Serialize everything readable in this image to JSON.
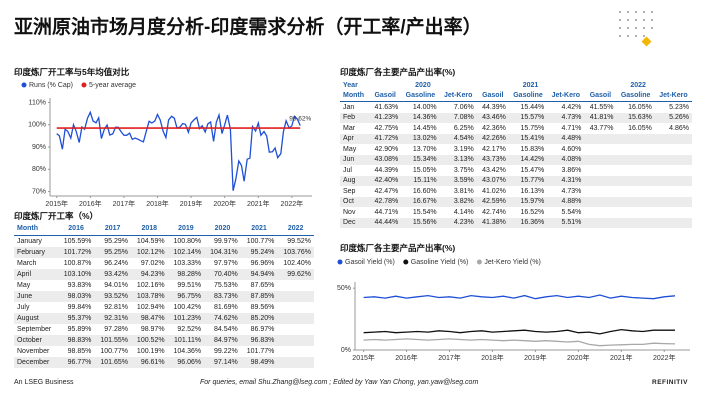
{
  "header": {
    "title": "亚洲原油市场月度分析-印度需求分析（开工率/产出率）"
  },
  "chart_data": [
    {
      "type": "line",
      "title": "印度炼厂开工率与5年均值对比",
      "xlim": [
        2014.8,
        2022.6
      ],
      "ylim": [
        68,
        112
      ],
      "grid": false,
      "xticks": [
        {
          "value": 2015,
          "label": "2015年"
        },
        {
          "value": 2016,
          "label": "2016年"
        },
        {
          "value": 2017,
          "label": "2017年"
        },
        {
          "value": 2018,
          "label": "2018年"
        },
        {
          "value": 2019,
          "label": "2019年"
        },
        {
          "value": 2020,
          "label": "2020年"
        },
        {
          "value": 2021,
          "label": "2021年"
        },
        {
          "value": 2022,
          "label": "2022年"
        }
      ],
      "yticks": [
        {
          "value": 70,
          "label": "70%"
        },
        {
          "value": 80,
          "label": "80%"
        },
        {
          "value": 90,
          "label": "90%"
        },
        {
          "value": 100,
          "label": "100%"
        },
        {
          "value": 110,
          "label": "110%"
        }
      ],
      "annotation": {
        "text": "99.62%",
        "x": 2022.25,
        "y": 99.62
      },
      "series": [
        {
          "name": "Runs (% Cap)",
          "color": "#1f4fd6",
          "x": [
            2015.0,
            2015.08,
            2015.17,
            2015.25,
            2015.33,
            2015.42,
            2015.5,
            2015.58,
            2015.67,
            2015.75,
            2015.83,
            2015.92,
            2016.0,
            2016.08,
            2016.17,
            2016.25,
            2016.33,
            2016.42,
            2016.5,
            2016.58,
            2016.67,
            2016.75,
            2016.83,
            2016.92,
            2017.0,
            2017.08,
            2017.17,
            2017.25,
            2017.33,
            2017.42,
            2017.5,
            2017.58,
            2017.67,
            2017.75,
            2017.83,
            2017.92,
            2018.0,
            2018.08,
            2018.17,
            2018.25,
            2018.33,
            2018.42,
            2018.5,
            2018.58,
            2018.67,
            2018.75,
            2018.83,
            2018.92,
            2019.0,
            2019.08,
            2019.17,
            2019.25,
            2019.33,
            2019.42,
            2019.5,
            2019.58,
            2019.67,
            2019.75,
            2019.83,
            2019.92,
            2020.0,
            2020.08,
            2020.17,
            2020.25,
            2020.33,
            2020.42,
            2020.5,
            2020.58,
            2020.67,
            2020.75,
            2020.83,
            2020.92,
            2021.0,
            2021.08,
            2021.17,
            2021.25,
            2021.33,
            2021.42,
            2021.5,
            2021.58,
            2021.67,
            2021.75,
            2021.83,
            2021.92,
            2022.0,
            2022.08,
            2022.17,
            2022.25
          ],
          "values": [
            96,
            95,
            89,
            98,
            97,
            94,
            100,
            97,
            92,
            99,
            98,
            103,
            105.59,
            101.72,
            100.87,
            103.1,
            93.83,
            98.03,
            99.84,
            95.37,
            95.89,
            98.83,
            98.85,
            96.77,
            95.29,
            95.25,
            96.24,
            93.42,
            94.01,
            93.52,
            92.81,
            92.31,
            97.28,
            101.55,
            100.77,
            101.65,
            104.59,
            102.12,
            97.02,
            94.23,
            102.16,
            103.78,
            102.94,
            98.47,
            98.97,
            100.52,
            100.19,
            96.61,
            100.8,
            102.14,
            103.33,
            98.28,
            99.51,
            96.75,
            100.42,
            101.23,
            92.52,
            101.11,
            104.36,
            96.06,
            99.97,
            104.31,
            97.97,
            70.4,
            75.53,
            83.73,
            81.69,
            74.62,
            84.54,
            84.97,
            99.22,
            97.14,
            100.77,
            95.24,
            96.96,
            94.94,
            87.65,
            87.85,
            89.56,
            85.2,
            86.97,
            96.83,
            101.77,
            98.49,
            99.52,
            103.76,
            102.4,
            99.62
          ]
        },
        {
          "name": "5-year average",
          "color": "#e02020",
          "x": [
            2015.0,
            2022.25
          ],
          "values": [
            98.5,
            98.5
          ]
        }
      ]
    },
    {
      "type": "line",
      "title": "印度炼厂各主要产品产出率(%)",
      "xlim": [
        2014.8,
        2022.6
      ],
      "ylim": [
        0,
        55
      ],
      "grid": false,
      "xticks": [
        {
          "value": 2015,
          "label": "2015年"
        },
        {
          "value": 2016,
          "label": "2016年"
        },
        {
          "value": 2017,
          "label": "2017年"
        },
        {
          "value": 2018,
          "label": "2018年"
        },
        {
          "value": 2019,
          "label": "2019年"
        },
        {
          "value": 2020,
          "label": "2020年"
        },
        {
          "value": 2021,
          "label": "2021年"
        },
        {
          "value": 2022,
          "label": "2022年"
        }
      ],
      "yticks": [
        {
          "value": 0,
          "label": "0%"
        },
        {
          "value": 50,
          "label": "50%"
        }
      ],
      "series": [
        {
          "name": "Gasoil Yield (%)",
          "color": "#1f4fd6",
          "x": [
            2015.0,
            2015.25,
            2015.5,
            2015.75,
            2016.0,
            2016.25,
            2016.5,
            2016.75,
            2017.0,
            2017.25,
            2017.5,
            2017.75,
            2018.0,
            2018.25,
            2018.5,
            2018.75,
            2019.0,
            2019.25,
            2019.5,
            2019.75,
            2020.0,
            2020.25,
            2020.5,
            2020.75,
            2021.0,
            2021.25,
            2021.5,
            2021.75,
            2022.0,
            2022.25
          ],
          "values": [
            42.5,
            43,
            42,
            43.5,
            42,
            43,
            44,
            42.5,
            43,
            42,
            44,
            43,
            42.5,
            43.5,
            42,
            44,
            41.5,
            43,
            44,
            42.5,
            43.5,
            42.5,
            44.5,
            42,
            43.5,
            42.5,
            42,
            41.5,
            43,
            43.8
          ]
        },
        {
          "name": "Gasoline Yield (%)",
          "color": "#111111",
          "x": [
            2015.0,
            2015.25,
            2015.5,
            2015.75,
            2016.0,
            2016.25,
            2016.5,
            2016.75,
            2017.0,
            2017.25,
            2017.5,
            2017.75,
            2018.0,
            2018.25,
            2018.5,
            2018.75,
            2019.0,
            2019.25,
            2019.5,
            2019.75,
            2020.0,
            2020.25,
            2020.5,
            2020.75,
            2021.0,
            2021.25,
            2021.5,
            2021.75,
            2022.0,
            2022.25
          ],
          "values": [
            14,
            14.5,
            15,
            14,
            14.5,
            15,
            14.5,
            15.5,
            15,
            14,
            15,
            15.5,
            14.5,
            15,
            15.5,
            16,
            15,
            14.5,
            15,
            16,
            14,
            14.5,
            13,
            15,
            16.5,
            15.5,
            15,
            16,
            16,
            16
          ]
        },
        {
          "name": "Jet-Kero Yield (%)",
          "color": "#a8a8a8",
          "x": [
            2015.0,
            2015.25,
            2015.5,
            2015.75,
            2016.0,
            2016.25,
            2016.5,
            2016.75,
            2017.0,
            2017.25,
            2017.5,
            2017.75,
            2018.0,
            2018.25,
            2018.5,
            2018.75,
            2019.0,
            2019.25,
            2019.5,
            2019.75,
            2020.0,
            2020.25,
            2020.5,
            2020.75,
            2021.0,
            2021.25,
            2021.5,
            2021.75,
            2022.0,
            2022.25
          ],
          "values": [
            8,
            8.5,
            8,
            8.5,
            9,
            8.5,
            8,
            8.5,
            9,
            8.5,
            8,
            8.5,
            8,
            7.5,
            8,
            7.5,
            7,
            7.5,
            7,
            6.5,
            7,
            4.5,
            3.5,
            4,
            4.2,
            4.5,
            4.5,
            5.5,
            5.2,
            4.9
          ]
        }
      ]
    }
  ],
  "runs_table": {
    "title": "印度炼厂开工率（%）",
    "header": [
      "Month",
      "2016",
      "2017",
      "2018",
      "2019",
      "2020",
      "2021",
      "2022"
    ],
    "rows": [
      [
        "January",
        "105.59%",
        "95.29%",
        "104.59%",
        "100.80%",
        "99.97%",
        "100.77%",
        "99.52%"
      ],
      [
        "February",
        "101.72%",
        "95.25%",
        "102.12%",
        "102.14%",
        "104.31%",
        "95.24%",
        "103.76%"
      ],
      [
        "March",
        "100.87%",
        "96.24%",
        "97.02%",
        "103.33%",
        "97.97%",
        "96.96%",
        "102.40%"
      ],
      [
        "April",
        "103.10%",
        "93.42%",
        "94.23%",
        "98.28%",
        "70.40%",
        "94.94%",
        "99.62%"
      ],
      [
        "May",
        "93.83%",
        "94.01%",
        "102.16%",
        "99.51%",
        "75.53%",
        "87.65%"
      ],
      [
        "June",
        "98.03%",
        "93.52%",
        "103.78%",
        "96.75%",
        "83.73%",
        "87.85%"
      ],
      [
        "July",
        "99.84%",
        "92.81%",
        "102.94%",
        "100.42%",
        "81.69%",
        "89.56%"
      ],
      [
        "August",
        "95.37%",
        "92.31%",
        "98.47%",
        "101.23%",
        "74.62%",
        "85.20%"
      ],
      [
        "September",
        "95.89%",
        "97.28%",
        "98.97%",
        "92.52%",
        "84.54%",
        "86.97%"
      ],
      [
        "October",
        "98.83%",
        "101.55%",
        "100.52%",
        "101.11%",
        "84.97%",
        "96.83%"
      ],
      [
        "November",
        "98.85%",
        "100.77%",
        "100.19%",
        "104.36%",
        "99.22%",
        "101.77%"
      ],
      [
        "December",
        "96.77%",
        "101.65%",
        "96.61%",
        "96.06%",
        "97.14%",
        "98.49%"
      ]
    ]
  },
  "yield_table": {
    "title": "印度炼厂各主要产品产出率(%)",
    "year_label": "Year",
    "years": [
      "2020",
      "2021",
      "2022"
    ],
    "header": [
      "Month",
      "Gasoil",
      "Gasoline",
      "Jet-Kero",
      "Gasoil",
      "Gasoline",
      "Jet-Kero",
      "Gasoil",
      "Gasoline",
      "Jet-Kero"
    ],
    "rows": [
      [
        "Jan",
        "41.63%",
        "14.00%",
        "7.06%",
        "44.39%",
        "15.44%",
        "4.42%",
        "41.55%",
        "16.05%",
        "5.23%"
      ],
      [
        "Feb",
        "41.23%",
        "14.36%",
        "7.08%",
        "43.46%",
        "15.57%",
        "4.73%",
        "41.81%",
        "15.63%",
        "5.26%"
      ],
      [
        "Mar",
        "42.75%",
        "14.45%",
        "6.25%",
        "42.36%",
        "15.75%",
        "4.71%",
        "43.77%",
        "16.05%",
        "4.86%"
      ],
      [
        "Apr",
        "41.72%",
        "13.02%",
        "4.54%",
        "42.26%",
        "15.41%",
        "4.48%"
      ],
      [
        "May",
        "42.90%",
        "13.70%",
        "3.19%",
        "42.17%",
        "15.83%",
        "4.60%"
      ],
      [
        "Jun",
        "43.08%",
        "15.34%",
        "3.13%",
        "43.73%",
        "14.42%",
        "4.08%"
      ],
      [
        "Jul",
        "44.39%",
        "15.05%",
        "3.75%",
        "43.42%",
        "15.47%",
        "3.86%"
      ],
      [
        "Aug",
        "42.40%",
        "15.11%",
        "3.59%",
        "43.07%",
        "15.77%",
        "4.31%"
      ],
      [
        "Sep",
        "42.47%",
        "16.60%",
        "3.81%",
        "41.02%",
        "16.13%",
        "4.73%"
      ],
      [
        "Oct",
        "42.78%",
        "16.67%",
        "3.82%",
        "42.59%",
        "15.97%",
        "4.88%"
      ],
      [
        "Nov",
        "44.71%",
        "15.54%",
        "4.14%",
        "42.74%",
        "16.52%",
        "5.54%"
      ],
      [
        "Dec",
        "44.44%",
        "15.56%",
        "4.23%",
        "41.38%",
        "16.36%",
        "5.51%"
      ]
    ]
  },
  "footer": {
    "company": "An LSEG Business",
    "contact": "For queries, email Shu.Zhang@lseg.com ; Edited by Yaw Yan Chong, yan.yaw@lseg.com",
    "brand": "REFINITIV"
  }
}
